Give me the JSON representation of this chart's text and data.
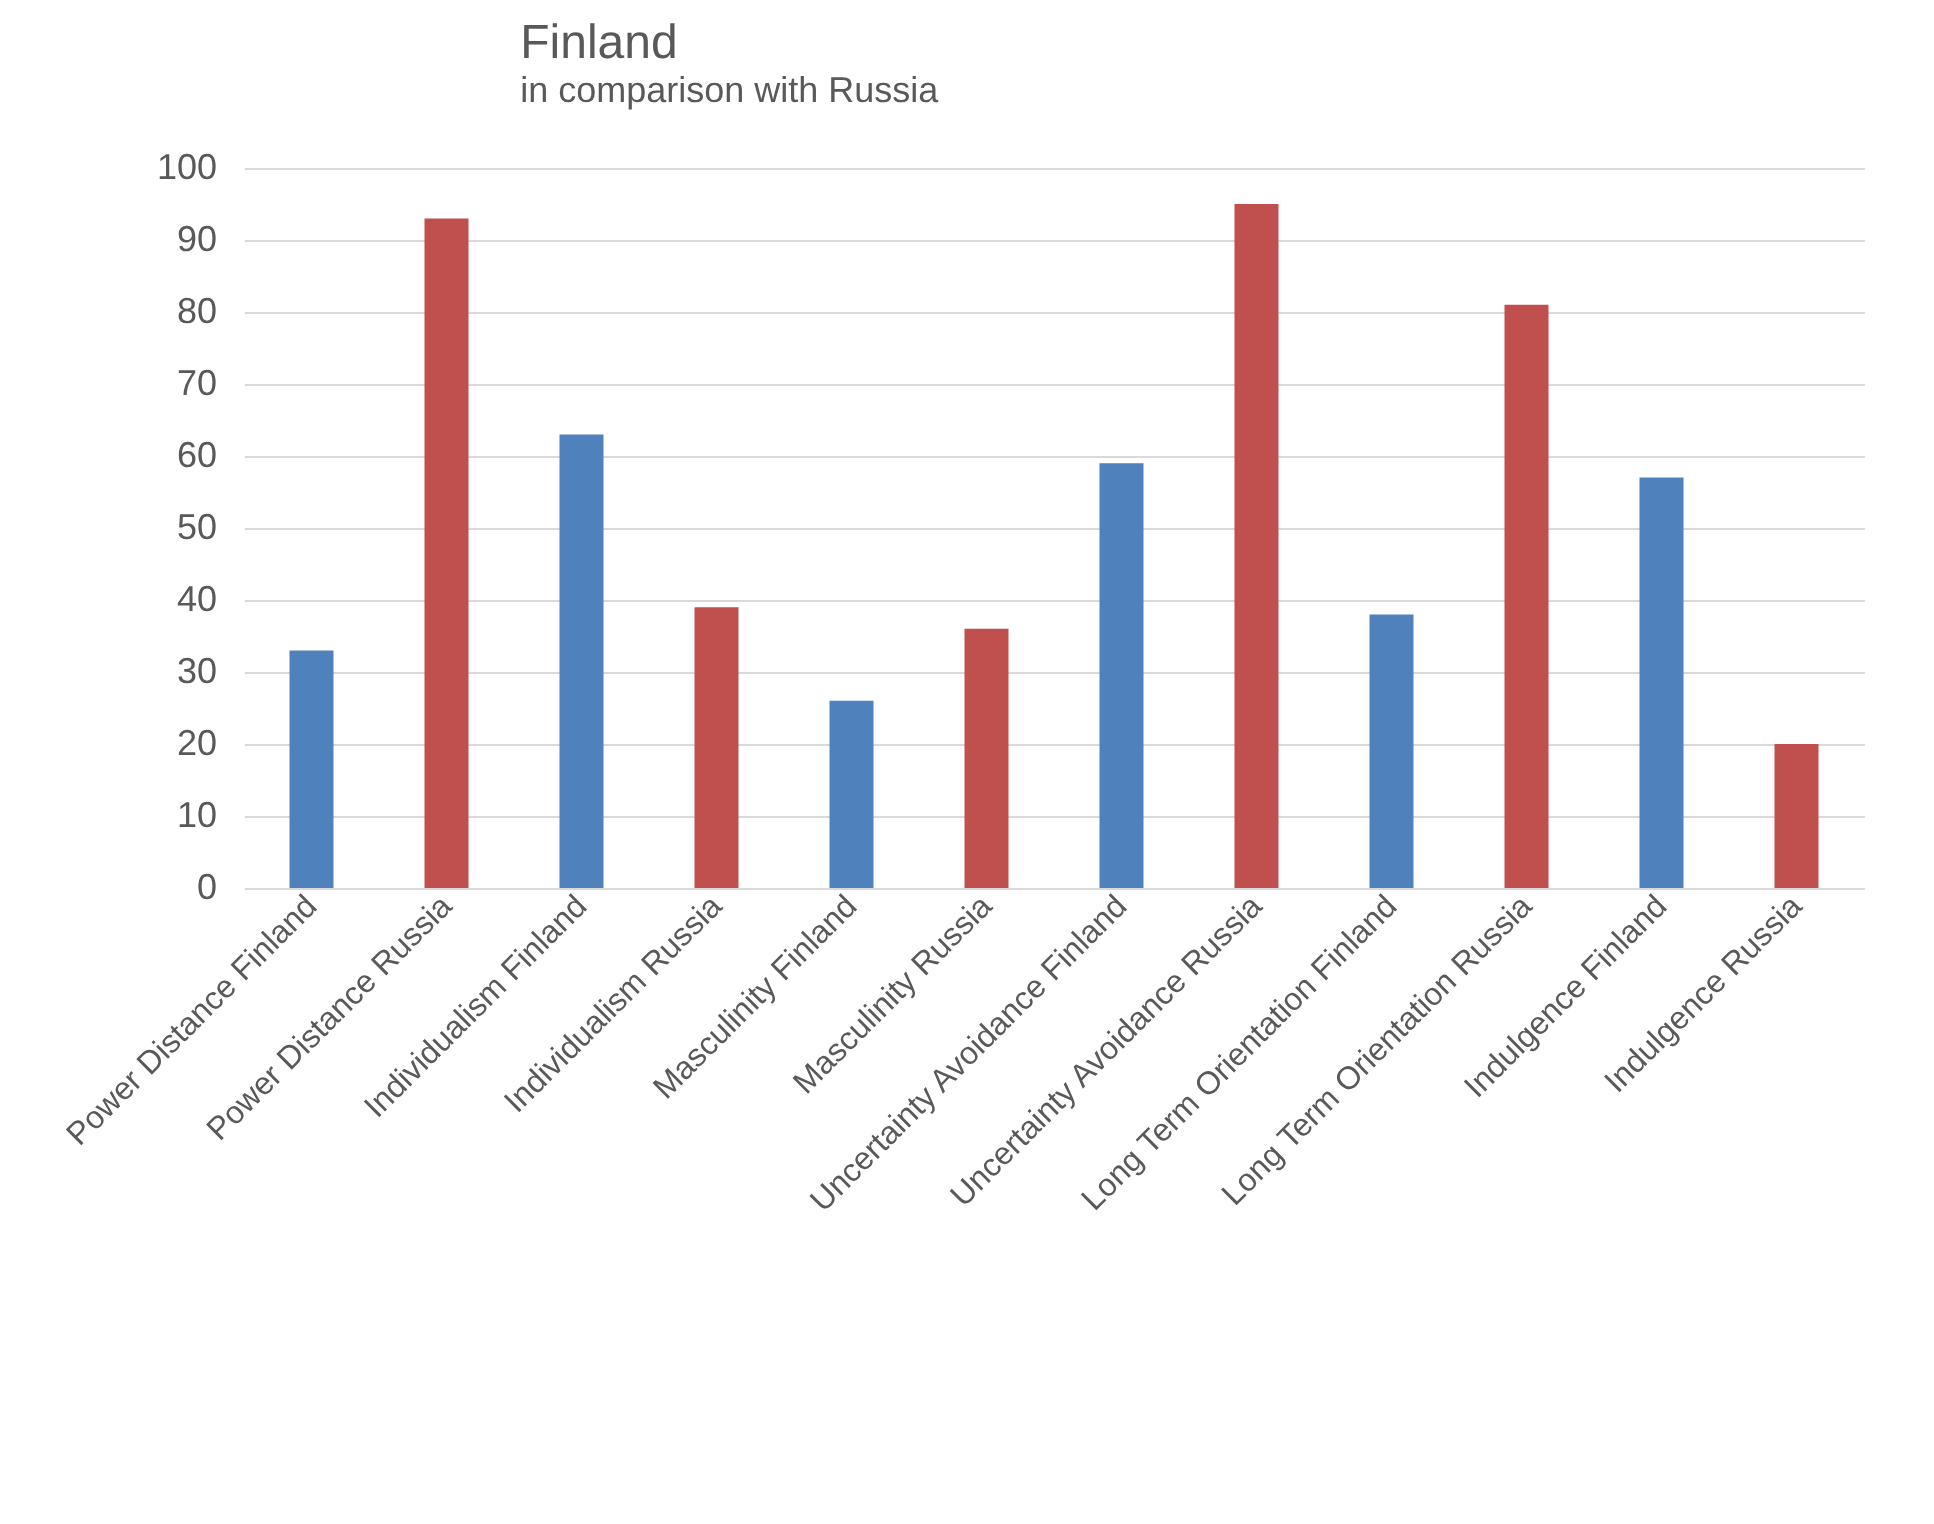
{
  "chart_data": {
    "type": "bar",
    "title": "Finland",
    "subtitle": "in comparison with Russia",
    "categories": [
      "Power Distance Finland",
      "Power Distance Russia",
      "Individualism Finland",
      "Individualism Russia",
      "Masculinity Finland",
      "Masculinity Russia",
      "Uncertainty Avoidance Finland",
      "Uncertainty Avoidance Russia",
      "Long Term Orientation Finland",
      "Long Term Orientation Russia",
      "Indulgence Finland",
      "Indulgence Russia"
    ],
    "values": [
      33,
      93,
      63,
      39,
      26,
      36,
      59,
      95,
      38,
      81,
      57,
      20
    ],
    "colors": [
      "#4f81bd",
      "#c0504d",
      "#4f81bd",
      "#c0504d",
      "#4f81bd",
      "#c0504d",
      "#4f81bd",
      "#c0504d",
      "#4f81bd",
      "#c0504d",
      "#4f81bd",
      "#c0504d"
    ],
    "ylim": [
      0,
      100
    ],
    "yticks": [
      0,
      10,
      20,
      30,
      40,
      50,
      60,
      70,
      80,
      90,
      100
    ],
    "grid": "y"
  }
}
